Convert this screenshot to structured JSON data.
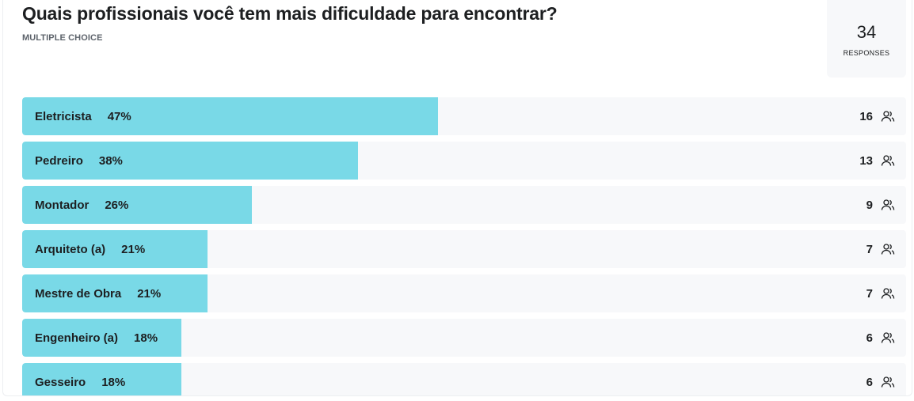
{
  "question": {
    "title": "Quais profissionais você tem mais dificuldade para encontrar?",
    "type_label": "MULTIPLE CHOICE"
  },
  "responses": {
    "count": "34",
    "label": "RESPONSES"
  },
  "options": [
    {
      "label": "Eletricista",
      "percent_text": "47%",
      "fill_fraction": 0.47,
      "count": "16"
    },
    {
      "label": "Pedreiro",
      "percent_text": "38%",
      "fill_fraction": 0.38,
      "count": "13"
    },
    {
      "label": "Montador",
      "percent_text": "26%",
      "fill_fraction": 0.26,
      "count": "9"
    },
    {
      "label": "Arquiteto (a)",
      "percent_text": "21%",
      "fill_fraction": 0.21,
      "count": "7"
    },
    {
      "label": "Mestre de Obra",
      "percent_text": "21%",
      "fill_fraction": 0.21,
      "count": "7"
    },
    {
      "label": "Engenheiro (a)",
      "percent_text": "18%",
      "fill_fraction": 0.18,
      "count": "6"
    },
    {
      "label": "Gesseiro",
      "percent_text": "18%",
      "fill_fraction": 0.18,
      "count": "6"
    }
  ],
  "colors": {
    "bar_fill": "#79d9e7",
    "row_background": "#f7f8fa"
  },
  "icons": {
    "row_count_icon": "people-icon"
  }
}
